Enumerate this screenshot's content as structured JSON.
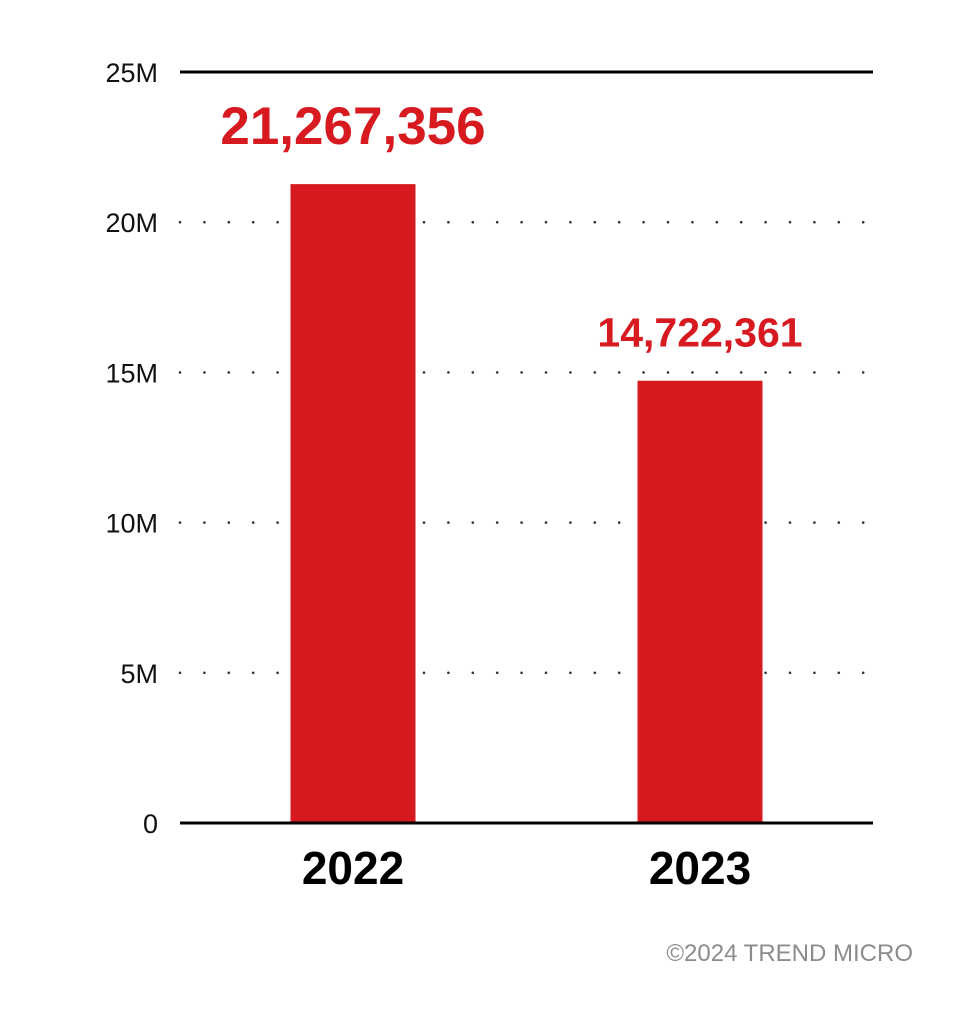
{
  "chart_data": {
    "type": "bar",
    "categories": [
      "2022",
      "2023"
    ],
    "values": [
      21267356,
      14722361
    ],
    "data_labels": [
      "21,267,356",
      "14,722,361"
    ],
    "ylim": [
      0,
      25000000
    ],
    "yticks": [
      0,
      5000000,
      10000000,
      15000000,
      20000000,
      25000000
    ],
    "ytick_labels": [
      "0",
      "5M",
      "10M",
      "15M",
      "20M",
      "25M"
    ],
    "title": "",
    "xlabel": "",
    "ylabel": "",
    "grid": "dotted horizontal",
    "legend": "none",
    "colors": {
      "bar": "#d71920",
      "data_label": "#d71920",
      "axis": "#000000",
      "grid": "#333333"
    }
  },
  "footer": {
    "copyright": "©2024 TREND MICRO"
  }
}
